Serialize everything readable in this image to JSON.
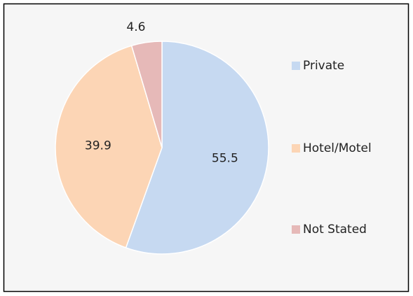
{
  "chart_data": {
    "type": "pie",
    "categories": [
      "Private",
      "Hotel/Motel",
      "Not Stated"
    ],
    "values": [
      55.5,
      39.9,
      4.6
    ],
    "colors": [
      "#c6d9f1",
      "#fcd5b5",
      "#e6b9b8"
    ],
    "legend": "right"
  }
}
